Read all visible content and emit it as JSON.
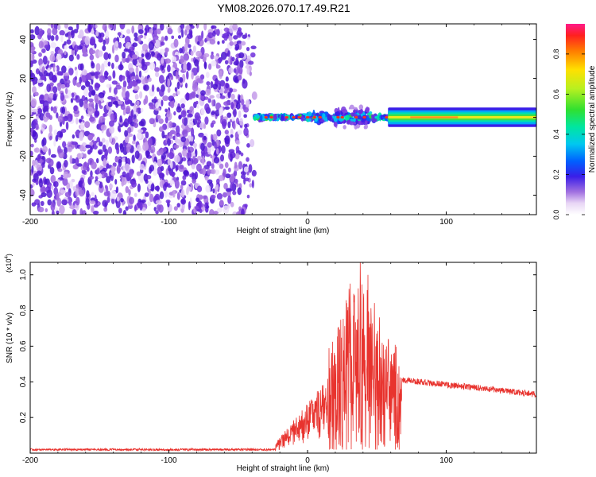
{
  "title": "YM08.2026.070.17.49.R21",
  "chart_data": [
    {
      "type": "heatmap",
      "name": "spectrogram",
      "xlabel": "Height of straight line (km)",
      "ylabel": "Frequency (Hz)",
      "xlim": [
        -200,
        165
      ],
      "ylim": [
        -50,
        48
      ],
      "xticks": [
        -200,
        -100,
        0,
        100
      ],
      "yticks": [
        -40,
        -20,
        0,
        20,
        40
      ],
      "noise_region_x": [
        -200,
        -38
      ],
      "signal_band_hz": [
        -5,
        5
      ],
      "colorbar": {
        "label": "Normalized spectral amplitude",
        "range": [
          0.0,
          0.95
        ],
        "ticks": [
          0.0,
          0.2,
          0.4,
          0.6,
          0.8
        ]
      }
    },
    {
      "type": "line",
      "name": "snr",
      "xlabel": "Height of straight line (km)",
      "ylabel": "SNR (10 * v/v)",
      "y_scale_note": {
        "base": "(x10",
        "exp": "4",
        "close": ")"
      },
      "xlim": [
        -200,
        165
      ],
      "ylim": [
        0,
        1.07
      ],
      "xticks": [
        -200,
        -100,
        0,
        100
      ],
      "yticks": [
        0.2,
        0.4,
        0.6,
        0.8,
        1.0
      ],
      "series": [
        {
          "name": "SNR",
          "color": "#e8332e",
          "segments": [
            {
              "x": [
                -200,
                -23
              ],
              "y": [
                0.02,
                0.02
              ]
            },
            {
              "x": [
                -23,
                15
              ],
              "y": [
                0.05,
                0.38
              ]
            },
            {
              "x": [
                15,
                68
              ],
              "y": [
                0.25,
                0.62
              ],
              "peak": {
                "x": 38,
                "y": 1.07
              }
            },
            {
              "x": [
                68,
                165
              ],
              "y": [
                0.41,
                0.33
              ]
            }
          ]
        }
      ]
    }
  ]
}
